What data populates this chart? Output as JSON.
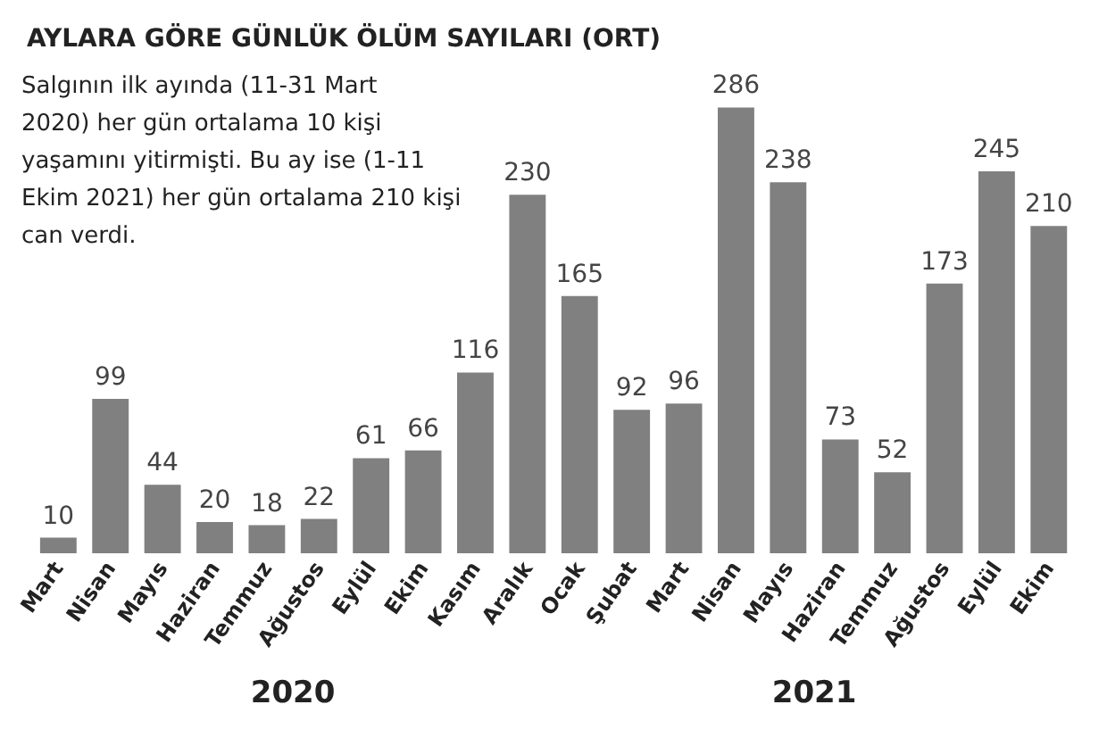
{
  "chart_data": {
    "type": "bar",
    "title": "AYLARA GÖRE GÜNLÜK ÖLÜM SAYILARI (ORT)",
    "categories": [
      "Mart",
      "Nisan",
      "Mayıs",
      "Haziran",
      "Temmuz",
      "Ağustos",
      "Eylül",
      "Ekim",
      "Kasım",
      "Aralık",
      "Ocak",
      "Şubat",
      "Mart",
      "Nisan",
      "Mayıs",
      "Haziran",
      "Temmuz",
      "Ağustos",
      "Eylül",
      "Ekim"
    ],
    "values": [
      10,
      99,
      44,
      20,
      18,
      22,
      61,
      66,
      116,
      230,
      165,
      92,
      96,
      286,
      238,
      73,
      52,
      173,
      245,
      210
    ],
    "color": "#808080",
    "data_labels": true,
    "annotations": [
      "Salgının ilk ayında (11-31 Mart 2020) her gün ortalama 10 kişi yaşamını yitirmişti. Bu ay ise (1-11 Ekim 2021) her gün ortalama 210 kişi can verdi.",
      "2020",
      "2021"
    ]
  }
}
